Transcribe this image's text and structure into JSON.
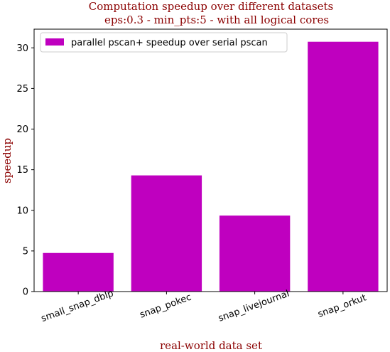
{
  "chart_data": {
    "type": "bar",
    "title_lines": [
      "Computation speedup over different datasets",
      "eps:0.3 - min_pts:5 - with all logical cores"
    ],
    "xlabel": "real-world data set",
    "ylabel": "speedup",
    "categories": [
      "small_snap_dblp",
      "snap_pokec",
      "snap_livejournal",
      "snap_orkut"
    ],
    "series": [
      {
        "name": "parallel pscan+ speedup over serial pscan",
        "values": [
          4.75,
          14.3,
          9.35,
          30.75
        ],
        "color": "#bf00bf"
      }
    ],
    "ylim": [
      0,
      32.3
    ],
    "yticks": [
      0,
      5,
      10,
      15,
      20,
      25,
      30
    ],
    "legend_position": "upper-left",
    "grid": false,
    "text_color": "#8b0000"
  }
}
